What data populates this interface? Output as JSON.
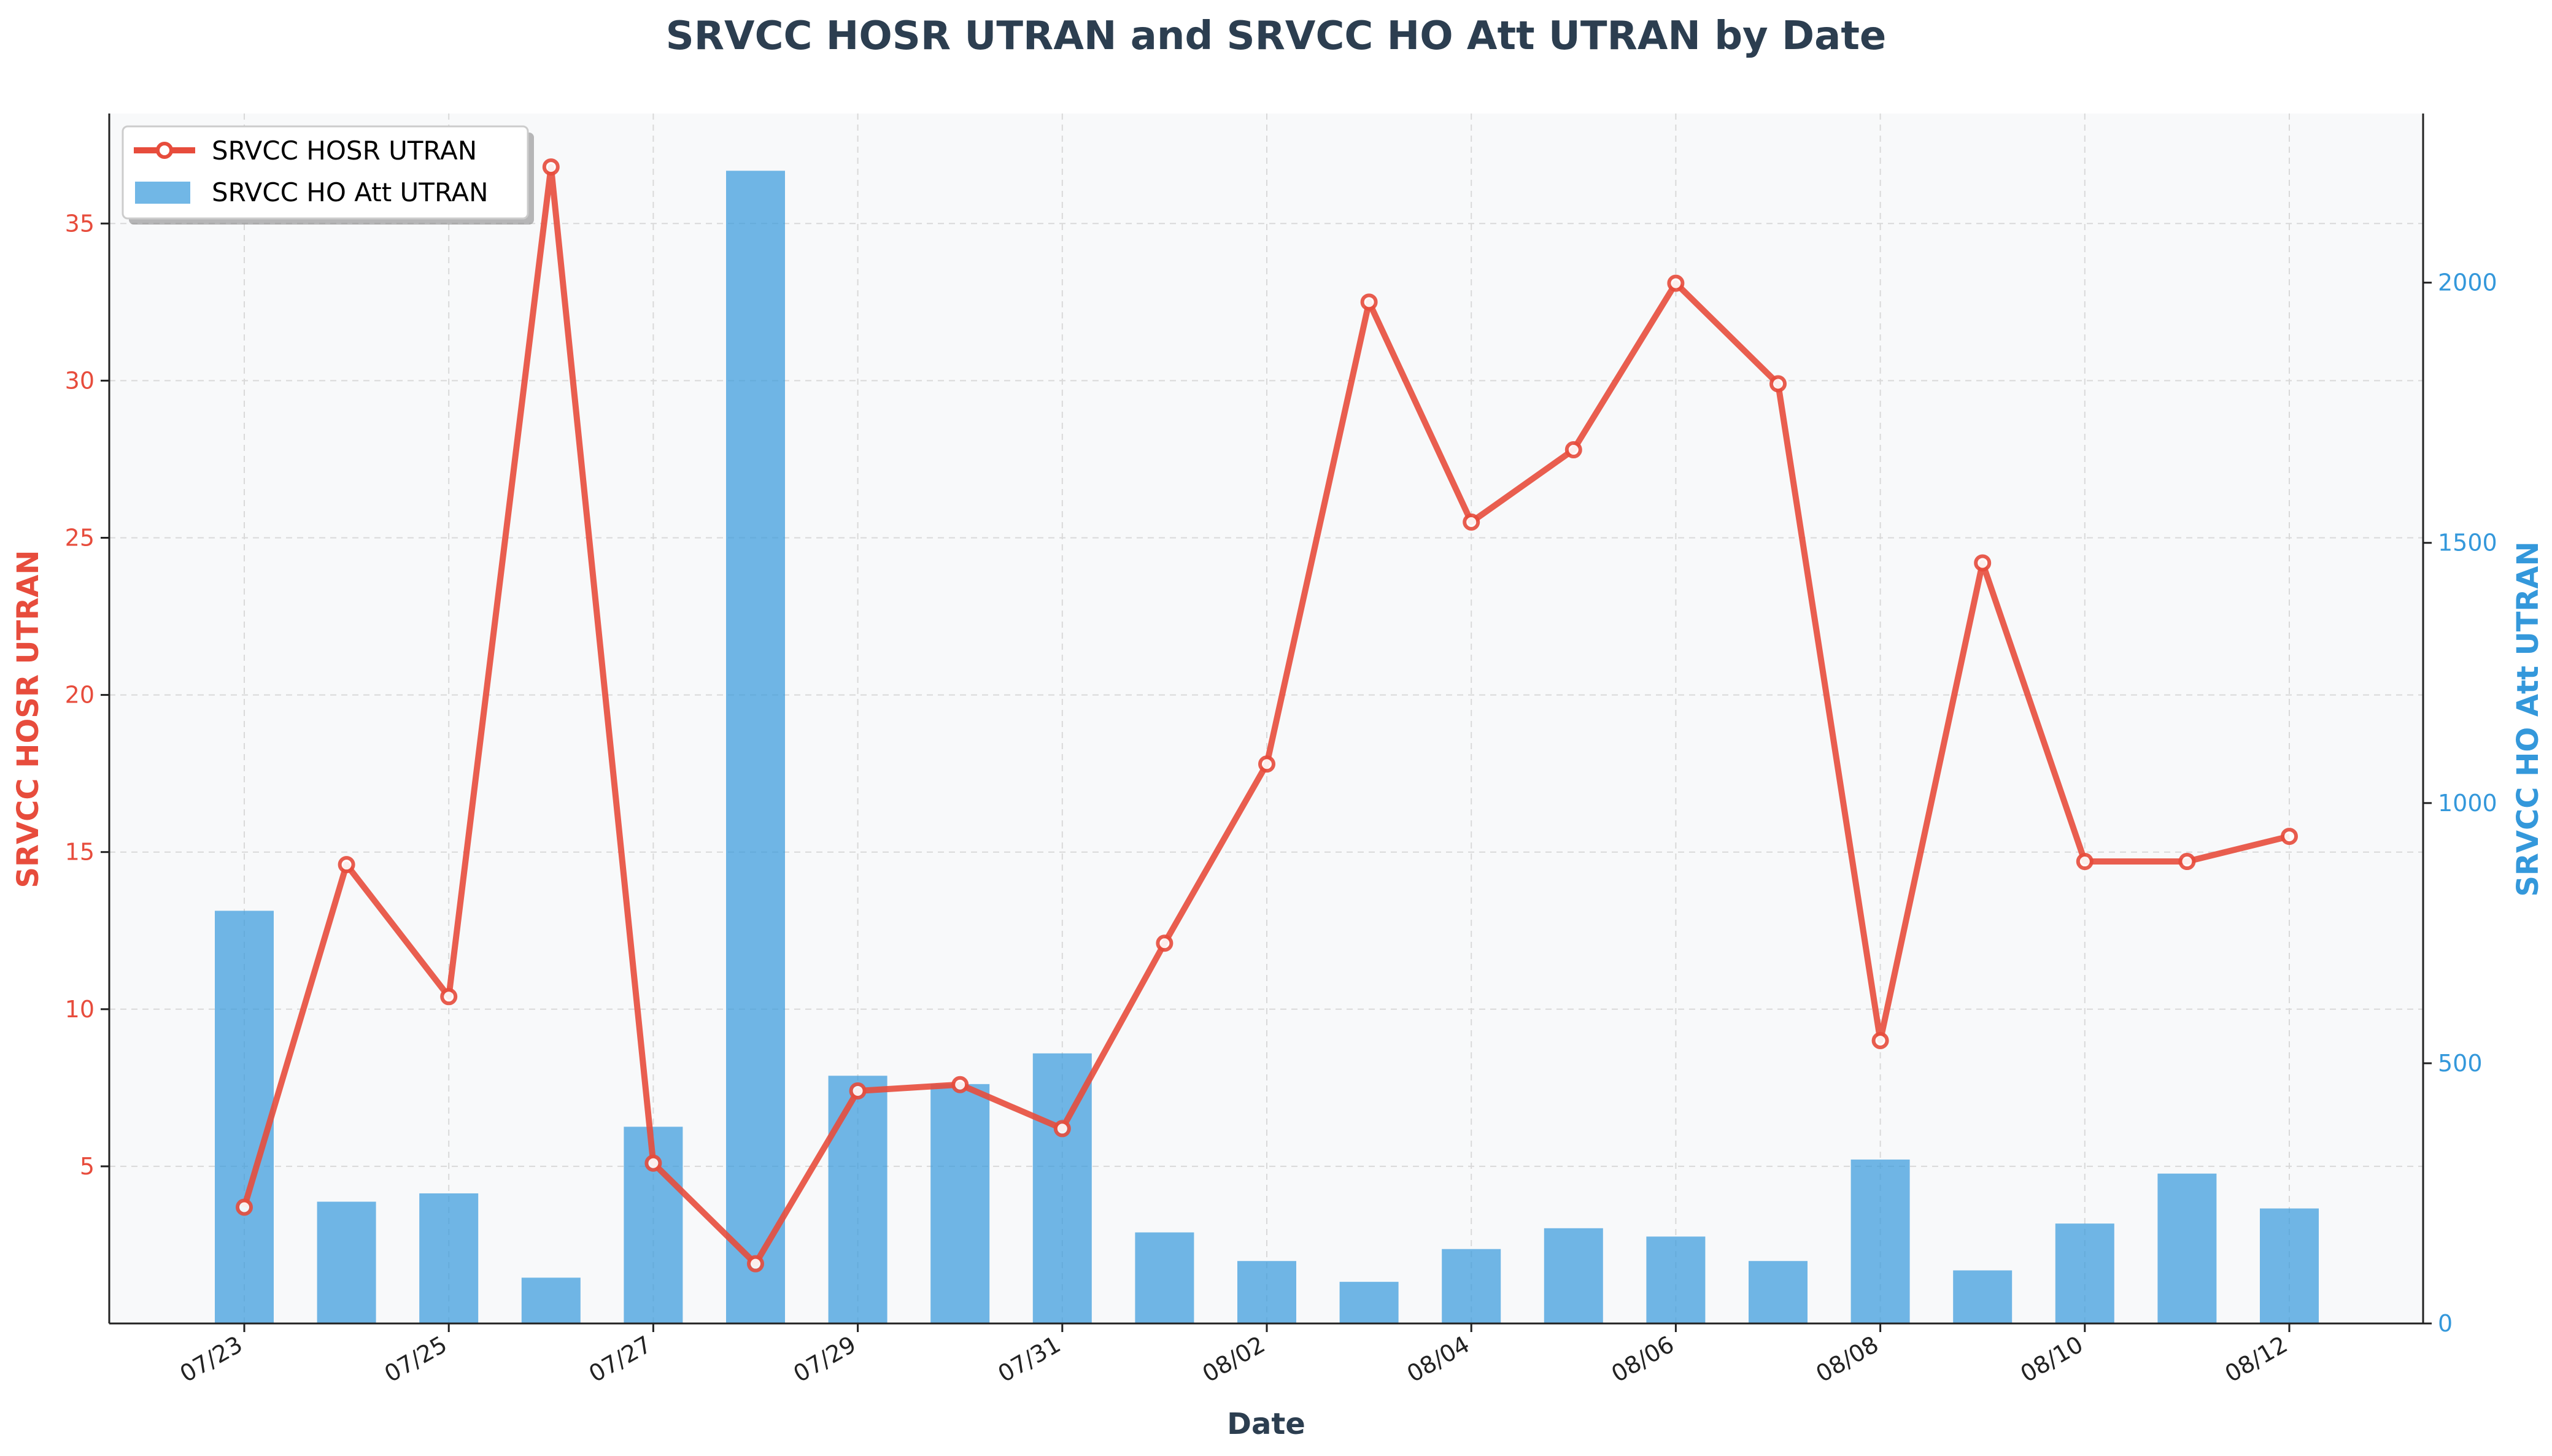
{
  "chart_data": {
    "type": "bar+line",
    "title": "SRVCC HOSR UTRAN and SRVCC HO Att UTRAN by Date",
    "xlabel": "Date",
    "ylabel_left": "SRVCC HOSR UTRAN",
    "ylabel_right": "SRVCC HO Att UTRAN",
    "x": [
      "07/23",
      "07/24",
      "07/25",
      "07/26",
      "07/27",
      "07/28",
      "07/29",
      "07/30",
      "07/31",
      "08/01",
      "08/02",
      "08/03",
      "08/04",
      "08/05",
      "08/06",
      "08/07",
      "08/08",
      "08/09",
      "08/10",
      "08/11",
      "08/12"
    ],
    "x_tick_labels": [
      "07/23",
      "07/25",
      "07/27",
      "07/29",
      "07/31",
      "08/02",
      "08/04",
      "08/06",
      "08/08",
      "08/10",
      "08/12"
    ],
    "y_left_ticks": [
      5,
      10,
      15,
      20,
      25,
      30,
      35
    ],
    "y_right_ticks": [
      0,
      500,
      1000,
      1500,
      2000
    ],
    "ylim_left": [
      0,
      38.5
    ],
    "ylim_right": [
      0,
      2325
    ],
    "grid": true,
    "legend_position": "top-left",
    "series": [
      {
        "name": "SRVCC HOSR UTRAN",
        "type": "line",
        "axis": "left",
        "color": "#e74c3c",
        "values": [
          3.7,
          14.6,
          10.4,
          36.8,
          5.1,
          1.9,
          7.4,
          7.6,
          6.2,
          12.1,
          17.8,
          32.5,
          25.5,
          27.8,
          33.1,
          29.9,
          9.0,
          24.2,
          14.7,
          14.7,
          15.5
        ]
      },
      {
        "name": "SRVCC HO Att UTRAN",
        "type": "bar",
        "axis": "right",
        "color": "#3498db",
        "values": [
          793,
          234,
          250,
          88,
          378,
          2215,
          476,
          460,
          519,
          175,
          120,
          80,
          143,
          183,
          167,
          120,
          315,
          102,
          192,
          288,
          221
        ]
      }
    ]
  }
}
